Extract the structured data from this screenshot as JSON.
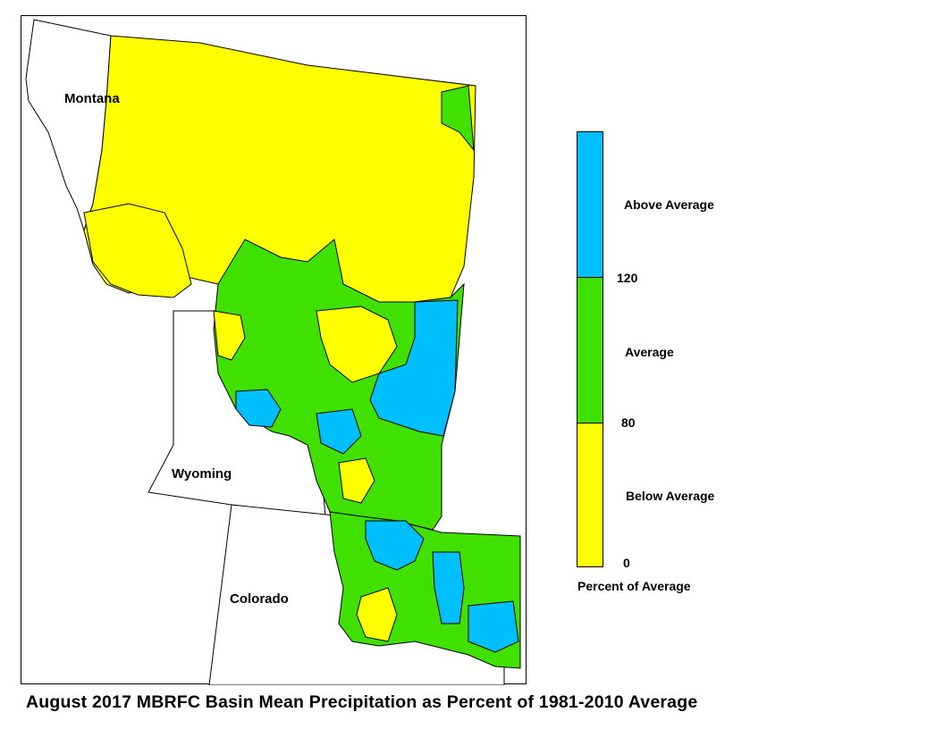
{
  "caption": "August 2017 MBRFC Basin Mean Precipitation as Percent of 1981-2010 Average",
  "states": {
    "montana": "Montana",
    "wyoming": "Wyoming",
    "colorado": "Colorado"
  },
  "legend": {
    "title": "Percent of Average",
    "categories": [
      {
        "label": "Above Average",
        "min": 120,
        "color": "#00BFFF"
      },
      {
        "label": "Average",
        "min": 80,
        "max": 120,
        "color": "#40E000"
      },
      {
        "label": "Below Average",
        "min": 0,
        "max": 80,
        "color": "#FFFF00"
      }
    ],
    "ticks": [
      "120",
      "80",
      "0"
    ]
  },
  "colors": {
    "above": "#00BFFF",
    "average": "#40E000",
    "below": "#FFFF00",
    "outline": "#000000"
  }
}
